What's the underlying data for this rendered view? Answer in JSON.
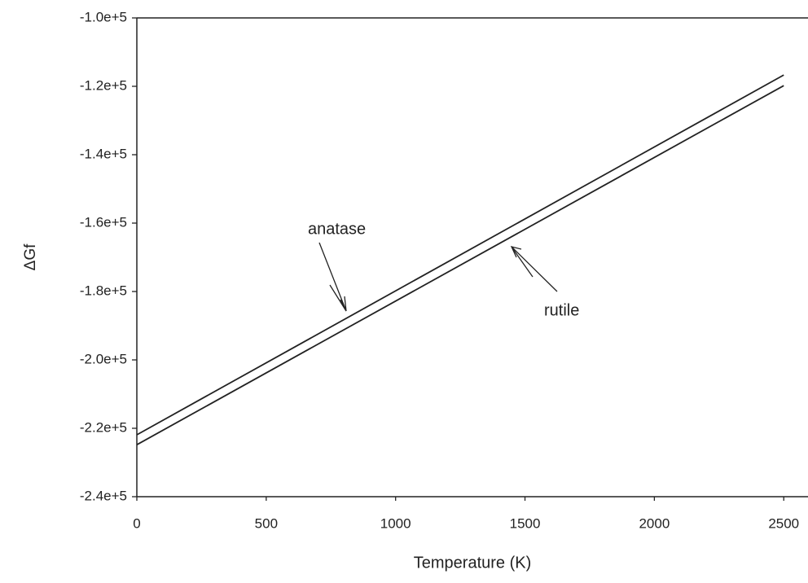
{
  "chart_data": {
    "type": "line",
    "xlabel": "Temperature (K)",
    "ylabel": "ΔGf",
    "x": [
      0,
      2500
    ],
    "series": [
      {
        "name": "anatase",
        "color": "#222222",
        "values": [
          -221900,
          -116700
        ]
      },
      {
        "name": "rutile",
        "color": "#222222",
        "values": [
          -224800,
          -119800
        ]
      }
    ],
    "xlim": [
      0,
      2600
    ],
    "ylim": [
      -240000,
      -100000
    ],
    "xticks": [
      0,
      500,
      1000,
      1500,
      2000,
      2500
    ],
    "yticks": [
      {
        "value": -240000,
        "label": "-2.4e+5"
      },
      {
        "value": -220000,
        "label": "-2.2e+5"
      },
      {
        "value": -200000,
        "label": "-2.0e+5"
      },
      {
        "value": -180000,
        "label": "-1.8e+5"
      },
      {
        "value": -160000,
        "label": "-1.6e+5"
      },
      {
        "value": -140000,
        "label": "-1.4e+5"
      },
      {
        "value": -120000,
        "label": "-1.2e+5"
      },
      {
        "value": -100000,
        "label": "-1.0e+5"
      }
    ],
    "grid": false,
    "annotations": [
      "anatase",
      "rutile"
    ]
  }
}
